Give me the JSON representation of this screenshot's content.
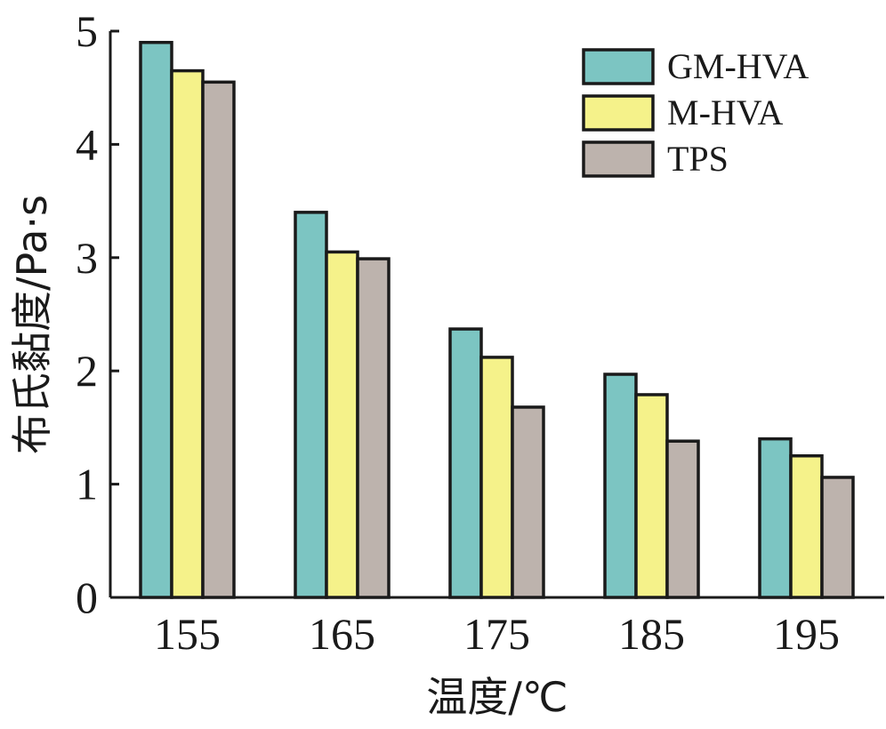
{
  "chart_data": {
    "type": "bar",
    "categories": [
      "155",
      "165",
      "175",
      "185",
      "195"
    ],
    "series": [
      {
        "name": "GM-HVA",
        "color": "#7cc5c2",
        "values": [
          4.9,
          3.4,
          2.37,
          1.97,
          1.4
        ]
      },
      {
        "name": "M-HVA",
        "color": "#f5f28a",
        "values": [
          4.65,
          3.05,
          2.12,
          1.79,
          1.25
        ]
      },
      {
        "name": "TPS",
        "color": "#bdb3ad",
        "values": [
          4.55,
          2.99,
          1.68,
          1.38,
          1.06
        ]
      }
    ],
    "xlabel": "温度/℃",
    "ylabel": "布氏黏度/Pa·s",
    "ylim": [
      0,
      5
    ],
    "yticks": [
      "0",
      "1",
      "2",
      "3",
      "4",
      "5"
    ],
    "grid": false,
    "legend_position": "top-right"
  }
}
